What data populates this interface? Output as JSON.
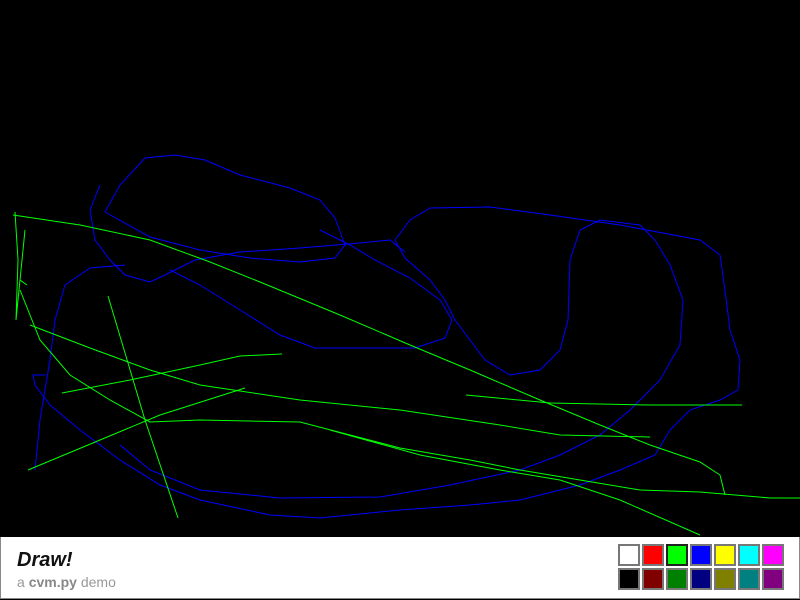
{
  "app": {
    "title": "Draw!",
    "subtitle_prefix": "a",
    "subtitle_brand": "cvm.py",
    "subtitle_suffix": "demo"
  },
  "palette": {
    "selected": "#00ff00",
    "colors": [
      "#ffffff",
      "#ff0000",
      "#00ff00",
      "#0000ff",
      "#ffff00",
      "#00ffff",
      "#ff00ff",
      "#000000",
      "#800000",
      "#008000",
      "#000080",
      "#808000",
      "#008080",
      "#800080"
    ]
  },
  "canvas": {
    "background": "#000000",
    "stroke_colors": [
      "#0000ff",
      "#00ff00"
    ]
  }
}
